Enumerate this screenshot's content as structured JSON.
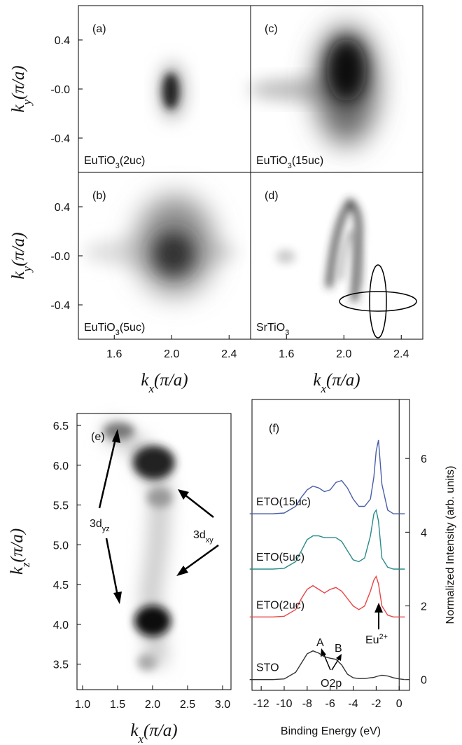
{
  "chart_data": [
    {
      "type": "map",
      "panel": "(a)",
      "sample": [
        "EuTiO",
        "3",
        "(2uc)"
      ],
      "ylabel": [
        "k",
        "y",
        "(π/a)"
      ],
      "ylim": [
        -0.68,
        0.68
      ],
      "yticks": [
        0.4,
        {
          "value": 0,
          "label": "-0.0"
        },
        -0.4
      ]
    },
    {
      "type": "map",
      "panel": "(b)",
      "sample": [
        "EuTiO",
        "3",
        "(5uc)"
      ],
      "ylabel": [
        "k",
        "y",
        "(π/a)"
      ],
      "ylim": [
        -0.68,
        0.68
      ],
      "yticks": [
        0.4,
        {
          "value": 0,
          "label": "-0.0"
        },
        -0.4
      ],
      "xlabel": [
        "k",
        "x",
        "(π/a)"
      ],
      "xlim": [
        1.35,
        2.55
      ],
      "xticks": [
        1.6,
        {
          "value": 2,
          "label": "2.0"
        },
        2.4
      ]
    },
    {
      "type": "map",
      "panel": "(c)",
      "sample": [
        "EuTiO",
        "3",
        "(15uc)"
      ]
    },
    {
      "type": "map",
      "panel": "(d)",
      "sample": [
        "SrTiO",
        "3",
        ""
      ],
      "xlabel": [
        "k",
        "x",
        "(π/a)"
      ],
      "xlim": [
        1.35,
        2.55
      ],
      "xticks": [
        1.6,
        {
          "value": 2,
          "label": "2.0"
        },
        2.4
      ]
    },
    {
      "type": "map",
      "panel": "(e)",
      "ylabel": [
        "k",
        "z",
        "(π/a)"
      ],
      "ylim": [
        3.18,
        6.65
      ],
      "yticks": [
        3.5,
        {
          "value": 4,
          "label": "4.0"
        },
        4.5,
        {
          "value": 5,
          "label": "5.0"
        },
        5.5,
        {
          "value": 6,
          "label": "6.0"
        },
        6.5
      ],
      "xlabel": [
        "k",
        "x",
        "(π/a)"
      ],
      "xlim": [
        0.92,
        3.12
      ],
      "xticks": [
        {
          "value": 1,
          "label": "1.0"
        },
        1.5,
        {
          "value": 2,
          "label": "2.0"
        },
        2.5,
        {
          "value": 3,
          "label": "3.0"
        }
      ],
      "annotations": [
        [
          "3d",
          "yz"
        ],
        [
          "3d",
          "xy"
        ]
      ]
    },
    {
      "type": "line",
      "panel": "(f)",
      "xlabel": "Binding Energy (eV)",
      "ylabel": "Normalized Intensity (arb. units)",
      "xlim": [
        -12.8,
        0.9
      ],
      "xticks": [
        -12,
        -10,
        -8,
        -6,
        -4,
        -2,
        0
      ],
      "ylim": [
        -0.29,
        7.6
      ],
      "yticks": [
        0,
        2,
        4,
        6
      ],
      "vline": 0,
      "x": [
        -13,
        -12,
        -11,
        -10,
        -9,
        -8.5,
        -8,
        -7.5,
        -7,
        -6.5,
        -6,
        -5.5,
        -5,
        -4.5,
        -4,
        -3.5,
        -3,
        -2.5,
        -2.2,
        -2,
        -1.8,
        -1.5,
        -1,
        -0.5,
        0,
        0.5
      ],
      "series": [
        {
          "name": "STO",
          "color": "#333333",
          "values": [
            0,
            0,
            0,
            0.02,
            0.2,
            0.45,
            0.7,
            0.78,
            0.72,
            0.62,
            0.58,
            0.55,
            0.4,
            0.15,
            0.05,
            0.03,
            0.03,
            0.05,
            0.06,
            0.08,
            0.1,
            0.12,
            0.1,
            0.05,
            0.02,
            0
          ]
        },
        {
          "name": "ETO(2uc)",
          "color": "#e84545",
          "values": [
            1.7,
            1.7,
            1.7,
            1.72,
            1.9,
            2.2,
            2.45,
            2.55,
            2.45,
            2.35,
            2.45,
            2.5,
            2.4,
            2.2,
            2.0,
            1.9,
            2.0,
            2.4,
            2.7,
            2.8,
            2.6,
            2.0,
            1.75,
            1.7,
            1.7,
            1.7
          ]
        },
        {
          "name": "ETO(5uc)",
          "color": "#2a8a8a",
          "values": [
            3,
            3,
            3,
            3.02,
            3.2,
            3.5,
            3.8,
            3.9,
            3.9,
            3.85,
            3.85,
            3.85,
            3.75,
            3.5,
            3.25,
            3.2,
            3.3,
            3.9,
            4.5,
            4.6,
            4.3,
            3.3,
            3.05,
            3,
            3,
            3
          ]
        },
        {
          "name": "ETO(15uc)",
          "color": "#4a5fa8",
          "values": [
            4.5,
            4.5,
            4.5,
            4.52,
            4.7,
            4.95,
            5.15,
            5.25,
            5.2,
            5.1,
            5.15,
            5.35,
            5.4,
            5.2,
            4.9,
            4.7,
            4.7,
            4.9,
            5.5,
            6.2,
            6.5,
            5.3,
            4.6,
            4.5,
            4.5,
            4.5
          ]
        }
      ],
      "annotations": [
        "A",
        "B",
        "O2p",
        [
          "Eu",
          "2+"
        ]
      ]
    }
  ]
}
